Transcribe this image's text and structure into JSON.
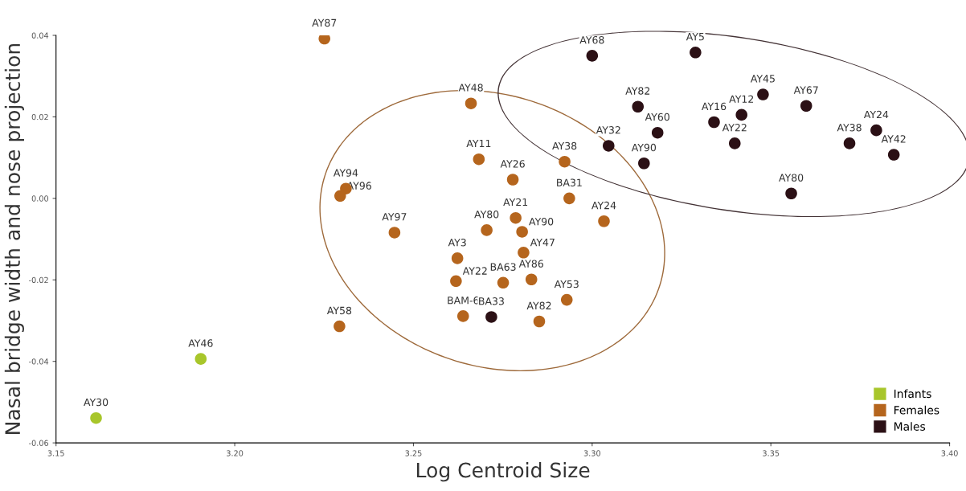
{
  "chart_data": {
    "type": "scatter",
    "xlabel": "Log Centroid Size",
    "ylabel": "Nasal bridge width and nose projection",
    "xlim": [
      3.15,
      3.4
    ],
    "xticks": [
      {
        "value": 3.15,
        "label": "3.15"
      },
      {
        "value": 3.2,
        "label": "3.20"
      },
      {
        "value": 3.25,
        "label": "3.25"
      },
      {
        "value": 3.3,
        "label": "3.30"
      },
      {
        "value": 3.35,
        "label": "3.35"
      },
      {
        "value": 3.4,
        "label": "3.40"
      }
    ],
    "ylim": [
      -0.06,
      0.04
    ],
    "yticks": [
      {
        "value": -0.06,
        "label": "-0.06"
      },
      {
        "value": -0.04,
        "label": "-0.04"
      },
      {
        "value": -0.02,
        "label": "-0.02"
      },
      {
        "value": 0,
        "label": "0.00"
      },
      {
        "value": 0.02,
        "label": "0.02"
      },
      {
        "value": 0.04,
        "label": "0.04"
      }
    ],
    "grid": false,
    "legend": "bottom right",
    "marker": "circle",
    "series": [
      {
        "name": "Infants",
        "color": "#a8c62b",
        "x": [
          3.1612,
          3.1905
        ],
        "values": [
          -0.0539,
          -0.0394
        ],
        "value_labels": [
          "AY30",
          "AY46"
        ]
      },
      {
        "name": "Females",
        "color": "#b5651d",
        "x": [
          3.2251,
          3.2661,
          3.2683,
          3.2311,
          3.2295,
          3.2447,
          3.2778,
          3.2923,
          3.2936,
          3.3033,
          3.2786,
          3.2705,
          3.2804,
          3.2808,
          3.2623,
          3.2619,
          3.2751,
          3.283,
          3.2929,
          3.2639,
          3.2852,
          3.2293
        ],
        "values": [
          0.0392,
          0.0233,
          0.0096,
          0.0024,
          0.0006,
          -0.0084,
          0.0046,
          0.009,
          0.0,
          -0.0056,
          -0.0048,
          -0.0078,
          -0.0082,
          -0.0133,
          -0.0147,
          -0.0203,
          -0.0207,
          -0.0199,
          -0.0249,
          -0.0289,
          -0.0302,
          -0.0314
        ],
        "value_labels": [
          "AY87",
          "AY48",
          "AY11",
          "AY94",
          "AY96",
          "AY97",
          "AY26",
          "AY38",
          "BA31",
          "AY24",
          "AY21",
          "AY80",
          "AY90",
          "AY47",
          "AY3",
          "AY22",
          "BA63",
          "AY86",
          "AY53",
          "BAM-6",
          "AY82",
          "AY58"
        ]
      },
      {
        "name": "Males",
        "color": "#2b1015",
        "x": [
          3.2718,
          3.3,
          3.3289,
          3.3128,
          3.3478,
          3.3599,
          3.3418,
          3.3341,
          3.3183,
          3.3046,
          3.3399,
          3.3145,
          3.372,
          3.3795,
          3.3844,
          3.3557
        ],
        "values": [
          -0.0291,
          0.035,
          0.0358,
          0.0225,
          0.0255,
          0.0227,
          0.0205,
          0.0187,
          0.0161,
          0.0129,
          0.0135,
          0.0086,
          0.0135,
          0.0167,
          0.0107,
          0.0012
        ],
        "value_labels": [
          "BA33",
          "AY68",
          "AY5",
          "AY82",
          "AY45",
          "AY67",
          "AY12",
          "AY16",
          "AY60",
          "AY32",
          "AY22",
          "AY90",
          "AY38",
          "AY24",
          "AY42",
          "AY80"
        ]
      }
    ]
  }
}
